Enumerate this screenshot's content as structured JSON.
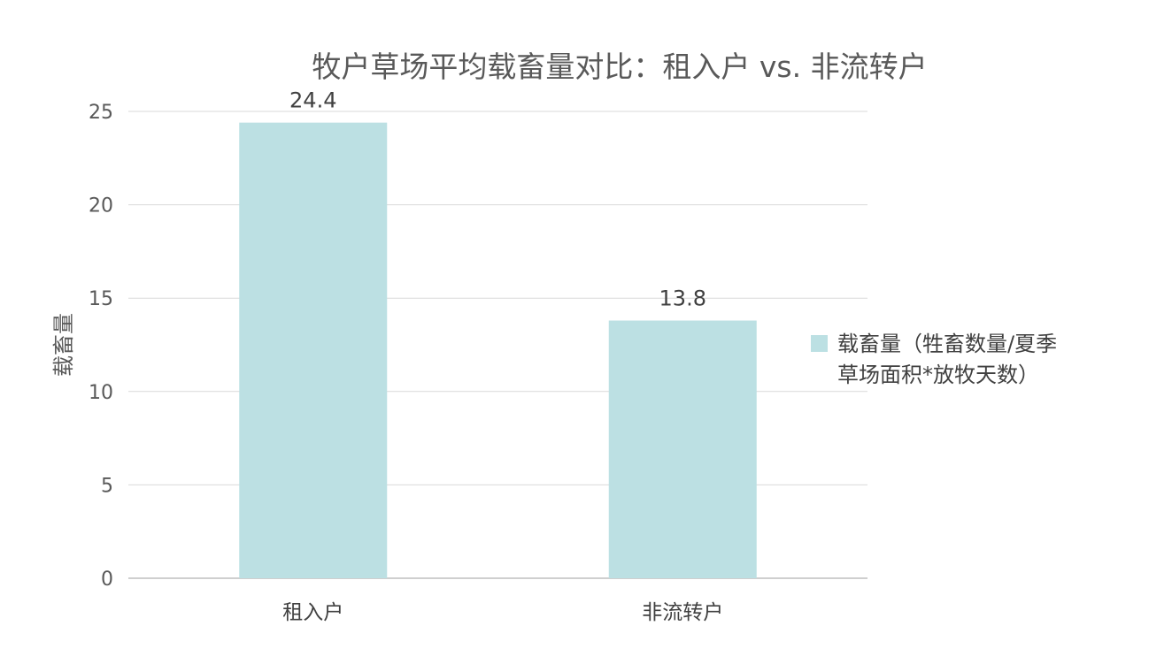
{
  "chart_data": {
    "type": "bar",
    "title": "牧户草场平均载畜量对比：租入户 vs. 非流转户",
    "xlabel": "",
    "ylabel": "载畜量",
    "categories": [
      "租入户",
      "非流转户"
    ],
    "series": [
      {
        "name": "载畜量（牲畜数量/夏季草场面积*放牧天数）",
        "values": [
          24.4,
          13.8
        ],
        "color": "#bce0e3"
      }
    ],
    "data_labels": [
      "24.4",
      "13.8"
    ],
    "ylim": [
      0,
      25
    ],
    "yticks": [
      0,
      5,
      10,
      15,
      20,
      25
    ],
    "grid": true,
    "legend_position": "right",
    "legend_lines": [
      "载畜量（牲畜数量/夏季",
      "草场面积*放牧天数）"
    ]
  }
}
